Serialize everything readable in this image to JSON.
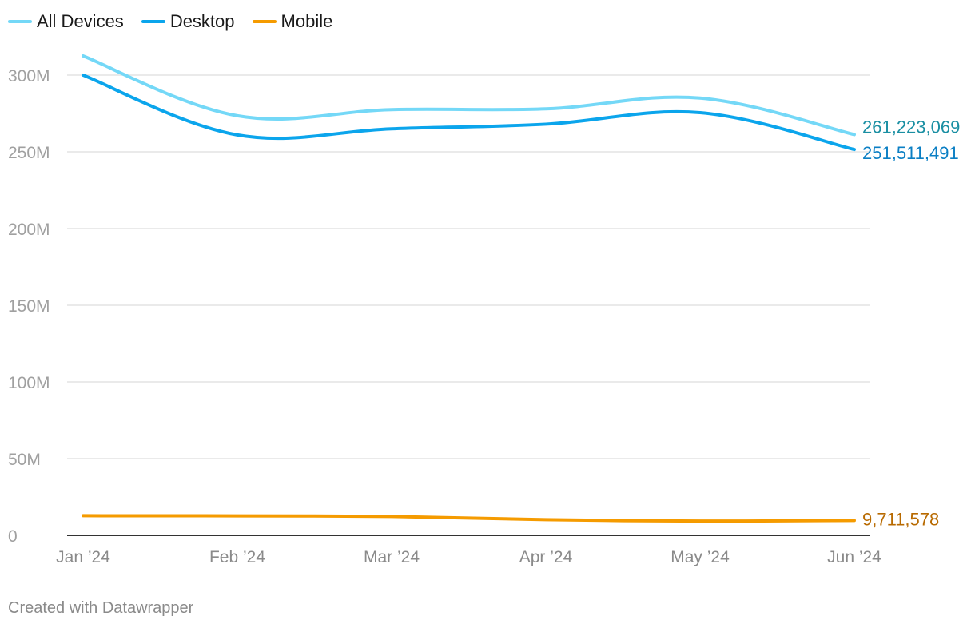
{
  "chart_data": {
    "type": "line",
    "title": "",
    "xlabel": "",
    "ylabel": "",
    "categories": [
      "Jan ’24",
      "Feb ’24",
      "Mar ’24",
      "Apr ’24",
      "May ’24",
      "Jun ’24"
    ],
    "y_ticks": [
      {
        "value": 0,
        "label": "0"
      },
      {
        "value": 50000000,
        "label": "50M"
      },
      {
        "value": 100000000,
        "label": "100M"
      },
      {
        "value": 150000000,
        "label": "150M"
      },
      {
        "value": 200000000,
        "label": "200M"
      },
      {
        "value": 250000000,
        "label": "250M"
      },
      {
        "value": 300000000,
        "label": "300M"
      }
    ],
    "ylim": [
      0,
      300000000
    ],
    "grid": true,
    "legend_position": "top-left",
    "series": [
      {
        "name": "All Devices",
        "color": "#74d8f7",
        "label_color": "#1a8fa3",
        "values": [
          312500000,
          273500000,
          277500000,
          278000000,
          285000000,
          261223069
        ],
        "end_label": "261,223,069"
      },
      {
        "name": "Desktop",
        "color": "#0ba5ec",
        "label_color": "#0b7fc4",
        "values": [
          300000000,
          261000000,
          265000000,
          268000000,
          275500000,
          251511491
        ],
        "end_label": "251,511,491"
      },
      {
        "name": "Mobile",
        "color": "#f59b00",
        "label_color": "#b86a00",
        "values": [
          12800000,
          12700000,
          12300000,
          10200000,
          9300000,
          9711578
        ],
        "end_label": "9,711,578"
      }
    ]
  },
  "footer": {
    "credit": "Created with Datawrapper"
  }
}
